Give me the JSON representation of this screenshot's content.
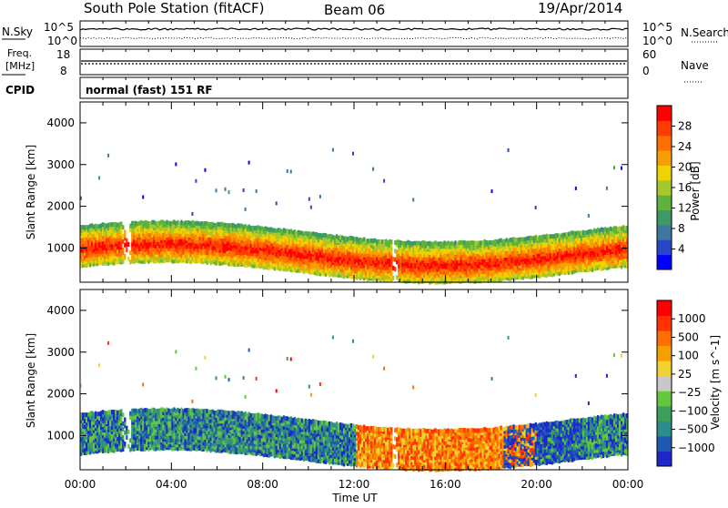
{
  "header": {
    "title": "South Pole Station (fitACF)",
    "beam": "Beam 06",
    "date": "19/Apr/2014"
  },
  "status_panels": {
    "nsky_label": "N.Sky",
    "nsearch_label": "N.Search",
    "freq_label_1": "Freq.",
    "freq_label_2": "[MHz]",
    "nave_label": "Nave",
    "cpid_label": "CPID",
    "noise_ticks_left": [
      "10^5",
      "10^0"
    ],
    "noise_ticks_right": [
      "10^5",
      "10^0"
    ],
    "freq_ticks_left": [
      "18",
      "8"
    ],
    "nave_ticks_right": [
      "60",
      "0"
    ],
    "cpid_text": "normal (fast) 151 RF"
  },
  "chart_data": [
    {
      "type": "heatmap",
      "name": "power",
      "ylabel": "Slant Range [km]",
      "xlabel": "",
      "ylim": [
        180,
        4500
      ],
      "yticks": [
        "1000",
        "2000",
        "3000",
        "4000"
      ],
      "xlim_hours": [
        0,
        24
      ],
      "colorbar_label": "Power [dB]",
      "colorbar_ticks": [
        "28",
        "24",
        "20",
        "16",
        "12",
        "8",
        "4"
      ],
      "colorbar_colors": [
        "#0000ff",
        "#2a46c8",
        "#3c78a0",
        "#3c9b64",
        "#5fb23c",
        "#a6c82d",
        "#f0d200",
        "#f5a000",
        "#ff6e00",
        "#ff3c00",
        "#ff0000"
      ]
    },
    {
      "type": "heatmap",
      "name": "velocity",
      "ylabel": "Slant Range [km]",
      "xlabel": "Time UT",
      "ylim": [
        180,
        4500
      ],
      "yticks": [
        "1000",
        "2000",
        "3000",
        "4000"
      ],
      "xlim_hours": [
        0,
        24
      ],
      "xticks": [
        "00:00",
        "04:00",
        "08:00",
        "12:00",
        "16:00",
        "20:00",
        "00:00"
      ],
      "colorbar_label": "Velocity [m s^-1]",
      "colorbar_ticks": [
        "1000",
        "500",
        "100",
        "25",
        "−25",
        "−100",
        "−500",
        "−1000"
      ],
      "colorbar_colors": [
        "#1e28c8",
        "#1e5ab4",
        "#2d8c8c",
        "#3ca05a",
        "#64c83c",
        "#c8c8c8",
        "#f0d232",
        "#f5a000",
        "#ff6e00",
        "#ff3200",
        "#ff0000"
      ]
    }
  ]
}
